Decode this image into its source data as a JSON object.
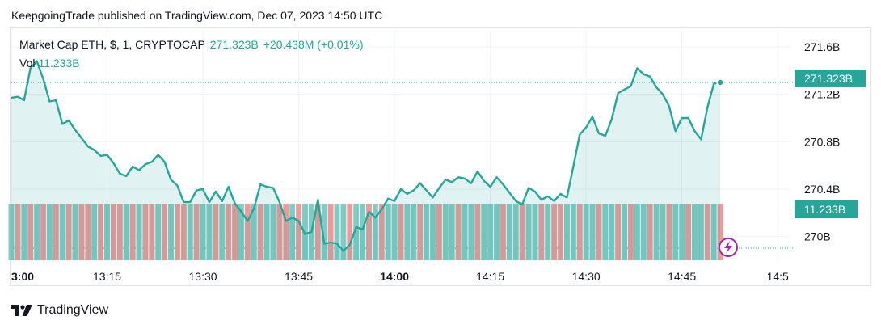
{
  "header": {
    "text": "KeepgoingTrade published on TradingView.com, Dec 07, 2023 14:50 UTC"
  },
  "legend": {
    "symbol": "Market Cap ETH, $, 1, CRYPTOCAP",
    "last": "271.323B",
    "change": "+20.438M (+0.01%)",
    "vol_label": "Vol",
    "vol_value": "11.233B"
  },
  "brand": {
    "name": "TradingView",
    "icon": "tradingview-logo-icon"
  },
  "colors": {
    "line": "#26a69a",
    "fill": "#26a69a",
    "vol_up": "#80cbc4",
    "vol_down": "#ef9a9a",
    "tag": "#26a69a",
    "dot": "#26a69a",
    "lightning": "#9c27b0"
  },
  "price_tag": "271.323B",
  "vol_tag": "11.233B",
  "chart_data": {
    "type": "area",
    "title": "Market Cap ETH, $, 1, CRYPTOCAP",
    "x_ticks": [
      {
        "label": "3:00",
        "t": 0,
        "bold": true
      },
      {
        "label": "13:15",
        "t": 15,
        "bold": false
      },
      {
        "label": "13:30",
        "t": 30,
        "bold": false
      },
      {
        "label": "13:45",
        "t": 45,
        "bold": false
      },
      {
        "label": "14:00",
        "t": 60,
        "bold": true
      },
      {
        "label": "14:15",
        "t": 75,
        "bold": false
      },
      {
        "label": "14:30",
        "t": 90,
        "bold": false
      },
      {
        "label": "14:45",
        "t": 105,
        "bold": false
      },
      {
        "label": "14:5",
        "t": 120,
        "bold": false
      }
    ],
    "y_ticks": [
      "270B",
      "270.4B",
      "270.8B",
      "271.2B",
      "271.6B"
    ],
    "y_tick_values": [
      270.0,
      270.4,
      270.8,
      271.2,
      271.6
    ],
    "ylim": [
      269.8,
      271.75
    ],
    "xlim": [
      0,
      122
    ],
    "series": [
      {
        "unit": "B",
        "x": [
          0,
          1,
          2,
          3,
          4,
          5,
          6,
          7,
          8,
          9,
          10,
          11,
          12,
          13,
          14,
          15,
          16,
          17,
          18,
          19,
          20,
          21,
          22,
          23,
          24,
          25,
          26,
          27,
          28,
          29,
          30,
          31,
          32,
          33,
          34,
          35,
          36,
          37,
          38,
          39,
          40,
          41,
          42,
          43,
          44,
          45,
          46,
          47,
          48,
          49,
          50,
          51,
          52,
          53,
          54,
          55,
          56,
          57,
          58,
          59,
          60,
          61,
          62,
          63,
          64,
          65,
          66,
          67,
          68,
          69,
          70,
          71,
          72,
          73,
          74,
          75,
          76,
          77,
          78,
          79,
          80,
          81,
          82,
          83,
          84,
          85,
          86,
          87,
          88,
          89,
          90,
          91,
          92,
          93,
          94,
          95,
          96,
          97,
          98,
          99,
          100,
          101,
          102,
          103,
          104,
          105,
          106,
          107,
          108,
          109,
          110,
          111
        ],
        "values": [
          271.17,
          271.18,
          271.15,
          271.42,
          271.48,
          271.33,
          271.14,
          271.15,
          270.95,
          270.98,
          270.9,
          270.83,
          270.76,
          270.73,
          270.68,
          270.69,
          270.62,
          270.53,
          270.51,
          270.59,
          270.56,
          270.61,
          270.63,
          270.69,
          270.63,
          270.48,
          270.43,
          270.29,
          270.29,
          270.39,
          270.4,
          270.29,
          270.38,
          270.3,
          270.42,
          270.28,
          270.21,
          270.13,
          270.24,
          270.44,
          270.42,
          270.41,
          270.29,
          270.13,
          270.16,
          270.13,
          270.02,
          270.04,
          270.31,
          269.94,
          269.95,
          269.94,
          269.88,
          269.93,
          270.08,
          270.06,
          270.21,
          270.16,
          270.23,
          270.32,
          270.3,
          270.4,
          270.36,
          270.39,
          270.45,
          270.39,
          270.33,
          270.41,
          270.48,
          270.46,
          270.5,
          270.49,
          270.45,
          270.55,
          270.47,
          270.42,
          270.5,
          270.44,
          270.37,
          270.3,
          270.27,
          270.41,
          270.38,
          270.31,
          270.34,
          270.3,
          270.36,
          270.33,
          270.59,
          270.86,
          270.92,
          271.01,
          270.87,
          270.85,
          270.99,
          271.21,
          271.24,
          271.27,
          271.42,
          271.37,
          271.35,
          271.26,
          271.2,
          271.1,
          270.89,
          271.0,
          271.0,
          270.89,
          270.82,
          271.09,
          271.29,
          271.3
        ],
        "volume_colors": [
          "up",
          "down",
          "up",
          "down",
          "up",
          "down",
          "up",
          "down",
          "up",
          "down",
          "up",
          "down",
          "down",
          "up",
          "down",
          "up",
          "down",
          "down",
          "up",
          "down",
          "up",
          "down",
          "down",
          "up",
          "down",
          "up",
          "down",
          "down",
          "up",
          "down",
          "up",
          "up",
          "down",
          "up",
          "down",
          "down",
          "up",
          "down",
          "up",
          "down",
          "up",
          "up",
          "down",
          "down",
          "up",
          "down",
          "up",
          "up",
          "down",
          "up",
          "down",
          "up",
          "up",
          "down",
          "up",
          "up",
          "down",
          "up",
          "down",
          "up",
          "up",
          "down",
          "up",
          "up",
          "down",
          "up",
          "up",
          "down",
          "up",
          "up",
          "down",
          "up",
          "up",
          "down",
          "up",
          "up",
          "up",
          "down",
          "up",
          "up",
          "down",
          "up",
          "up",
          "down",
          "up",
          "down",
          "down",
          "up",
          "up",
          "down",
          "up",
          "up",
          "down",
          "up",
          "up",
          "down",
          "up",
          "down",
          "up",
          "up",
          "down",
          "up",
          "up",
          "down",
          "up",
          "up",
          "down",
          "up",
          "up",
          "down",
          "up",
          "down"
        ]
      }
    ],
    "grid": true
  }
}
